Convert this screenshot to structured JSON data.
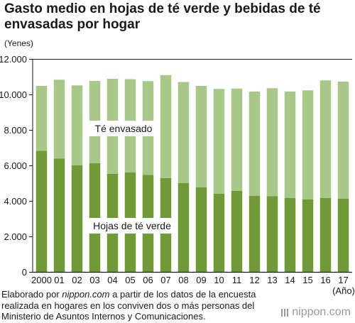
{
  "title": "Gasto medio en hojas de té verde y bebidas de té envasadas por hogar",
  "unit_label": "(Yenes)",
  "year_unit_label": "(Año)",
  "note": {
    "prefix": "Elaborado por ",
    "site": "nippon.com",
    "suffix": " a partir de los datos de la encuesta realizada en hogares en los conviven dos o más personas del Ministerio de Asuntos Internos y Comunicaciones."
  },
  "brand": "nippon.com",
  "chart_data": {
    "type": "bar",
    "stacked": true,
    "categories": [
      "2000",
      "01",
      "02",
      "03",
      "04",
      "05",
      "06",
      "07",
      "08",
      "09",
      "10",
      "11",
      "12",
      "13",
      "14",
      "15",
      "16",
      "17"
    ],
    "series": [
      {
        "name": "Hojas de té verde",
        "color": "#6f9a37",
        "values": [
          6850,
          6400,
          6020,
          6150,
          5550,
          5620,
          5480,
          5300,
          5020,
          4790,
          4430,
          4580,
          4300,
          4280,
          4180,
          4100,
          4180,
          4150
        ]
      },
      {
        "name": "Té envasado",
        "color": "#a8c88a",
        "values": [
          3650,
          4450,
          4510,
          4630,
          5350,
          5260,
          5290,
          5810,
          5700,
          5710,
          5900,
          5770,
          5880,
          6090,
          6000,
          6150,
          6630,
          6590
        ]
      }
    ],
    "ylim": [
      0,
      12000
    ],
    "yticks": [
      "0",
      "2.000",
      "4.000",
      "6.000",
      "8.000",
      "10.000",
      "12.000"
    ],
    "ytick_values": [
      0,
      2000,
      4000,
      6000,
      8000,
      10000,
      12000
    ],
    "grid": false,
    "legend": "inline-labels"
  }
}
